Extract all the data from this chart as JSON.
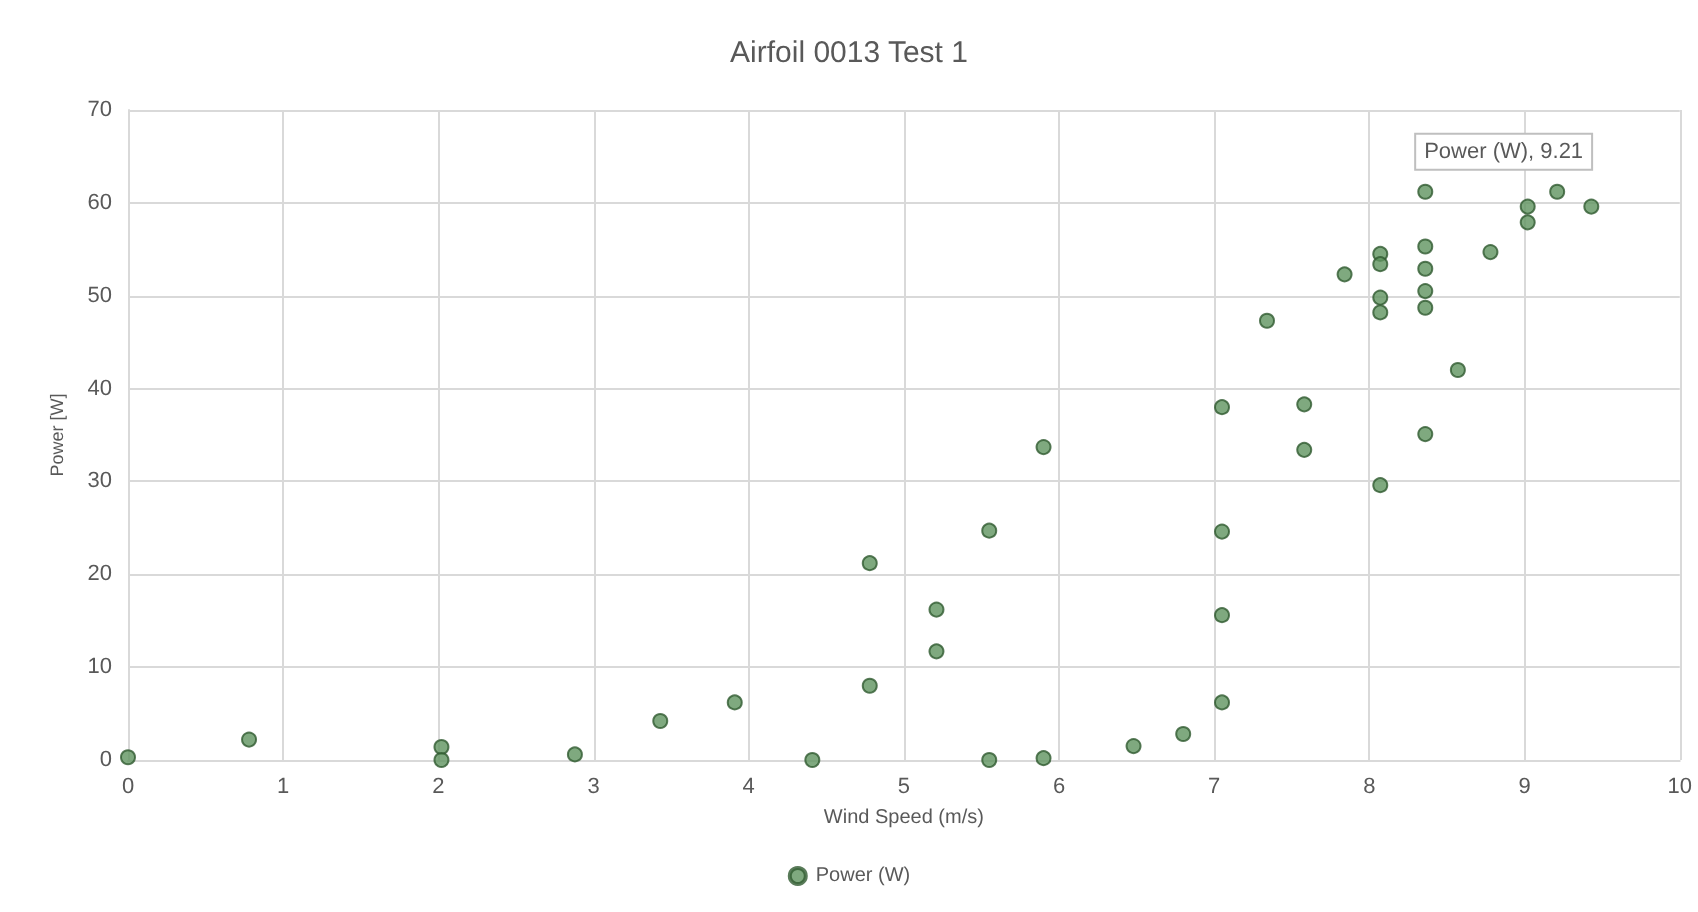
{
  "chart_data": {
    "type": "scatter",
    "title": "Airfoil 0013 Test 1",
    "xlabel": "Wind Speed (m/s)",
    "ylabel": "Power [W]",
    "xlim": [
      0,
      10
    ],
    "xticks": [
      0,
      1,
      2,
      3,
      4,
      5,
      6,
      7,
      8,
      9,
      10
    ],
    "ylim": [
      0,
      70
    ],
    "yticks": [
      0,
      10,
      20,
      30,
      40,
      50,
      60,
      70
    ],
    "grid": true,
    "legend": "bottom",
    "marker": "circle",
    "annotations": [
      {
        "text": "Power (W), 9.21",
        "x": 9.21,
        "y": 61.2
      }
    ],
    "series": [
      {
        "name": "Power (W)",
        "color": "#5f945f",
        "x": [
          0,
          0.78,
          2.02,
          2.02,
          2.88,
          3.43,
          3.91,
          4.41,
          4.78,
          4.78,
          5.21,
          5.21,
          5.55,
          5.55,
          5.9,
          5.9,
          6.48,
          6.8,
          7.05,
          7.05,
          7.05,
          7.05,
          7.34,
          7.58,
          7.58,
          7.84,
          8.07,
          8.07,
          8.07,
          8.07,
          8.07,
          8.36,
          8.36,
          8.36,
          8.36,
          8.36,
          8.36,
          8.57,
          8.78,
          9.02,
          9.02,
          9.21,
          9.43
        ],
        "values": [
          0.3,
          2.2,
          1.4,
          0,
          0.6,
          4.2,
          6.2,
          0,
          21.2,
          8,
          16.2,
          11.7,
          24.7,
          0,
          33.7,
          0.2,
          1.5,
          2.8,
          38,
          24.6,
          15.6,
          6.2,
          47.3,
          38.3,
          33.4,
          52.3,
          54.5,
          53.4,
          49.8,
          48.2,
          29.6,
          61.2,
          55.3,
          52.9,
          50.5,
          48.7,
          35.1,
          42,
          54.7,
          59.6,
          57.9,
          61.2,
          59.6
        ]
      }
    ]
  }
}
